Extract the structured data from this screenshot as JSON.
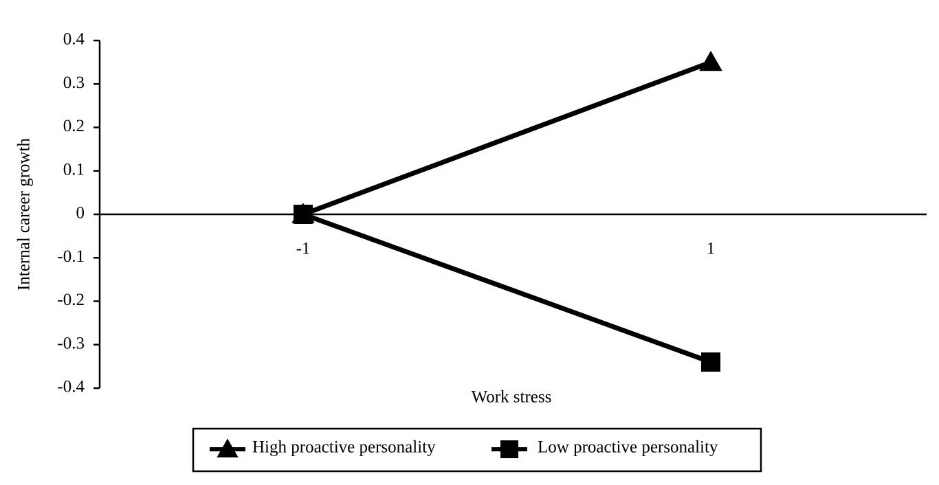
{
  "chart_data": {
    "type": "line",
    "x_label": "Work stress",
    "y_label": "Internal career growth",
    "categories": [
      "-1",
      "1"
    ],
    "series": [
      {
        "name": "High proactive personality",
        "color": "#000000",
        "marker": "triangle",
        "values": [
          0,
          0.35
        ]
      },
      {
        "name": "Low proactive personality",
        "color": "#000000",
        "marker": "square",
        "values": [
          0,
          -0.34
        ]
      }
    ],
    "ylim": [
      -0.4,
      0.4
    ],
    "yticks": [
      -0.4,
      -0.3,
      -0.2,
      -0.1,
      0,
      0.1,
      0.2,
      0.3,
      0.4
    ]
  }
}
